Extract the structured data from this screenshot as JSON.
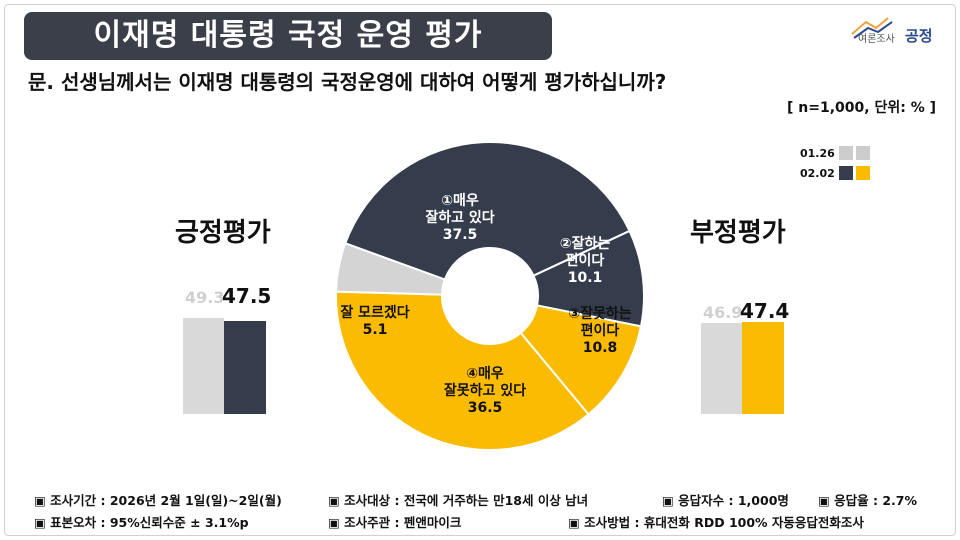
{
  "header": {
    "title": "이재명 대통령 국정 운영 평가",
    "logo_small": "여론조사",
    "logo_brand": "공정"
  },
  "question": "문. 선생님께서는 이재명 대통령의 국정운영에 대하여 어떻게 평가하십니까?",
  "note": "[ n=1,000, 단위: % ]",
  "legend": [
    {
      "label": "01.26",
      "colors": [
        "#cccccc",
        "#cccccc"
      ]
    },
    {
      "label": "02.02",
      "colors": [
        "#353d4d",
        "#fbbb00"
      ]
    }
  ],
  "positive": {
    "title": "긍정평가",
    "prev": "49.3",
    "curr": "47.5",
    "prev_value": 49.3,
    "curr_value": 47.5
  },
  "negative": {
    "title": "부정평가",
    "prev": "46.9",
    "curr": "47.4",
    "prev_value": 46.9,
    "curr_value": 47.4
  },
  "chart_data": {
    "type": "pie",
    "slices": [
      {
        "label": "①매우 잘하고 있다",
        "value": 37.5,
        "color": "#353d4d"
      },
      {
        "label": "②잘하는 편이다",
        "value": 10.1,
        "color": "#353d4d"
      },
      {
        "label": "③잘못하는 편이다",
        "value": 10.8,
        "color": "#fbbb00"
      },
      {
        "label": "④매우 잘못하고 있다",
        "value": 36.5,
        "color": "#fbbb00"
      },
      {
        "label": "잘 모르겠다",
        "value": 5.1,
        "color": "#d4d4d4"
      }
    ],
    "slice_text": [
      {
        "lines": [
          "①매우",
          "잘하고 있다"
        ],
        "value": "37.5"
      },
      {
        "lines": [
          "②잘하는",
          "편이다"
        ],
        "value": "10.1"
      },
      {
        "lines": [
          "③잘못하는",
          "편이다"
        ],
        "value": "10.8"
      },
      {
        "lines": [
          "④매우",
          "잘못하고 있다"
        ],
        "value": "36.5"
      },
      {
        "lines": [
          "잘 모르겠다"
        ],
        "value": "5.1"
      }
    ],
    "bars": [
      {
        "group": "긍정평가",
        "01.26": 49.3,
        "02.02": 47.5
      },
      {
        "group": "부정평가",
        "01.26": 46.9,
        "02.02": 47.4
      }
    ]
  },
  "footer": {
    "period": "▣ 조사기간 : 2026년 2월 1일(일)~2일(월)",
    "target": "▣ 조사대상 : 전국에 거주하는 만18세 이상 남녀",
    "respondents": "▣ 응답자수 : 1,000명",
    "response_rate": "▣ 응답율 : 2.7%",
    "error": "▣ 표본오차 : 95%신뢰수준 ± 3.1%p",
    "organizer": "▣ 조사주관 : 펜앤마이크",
    "method": "▣ 조사방법 : 휴대전화 RDD 100% 자동응답전화조사"
  }
}
